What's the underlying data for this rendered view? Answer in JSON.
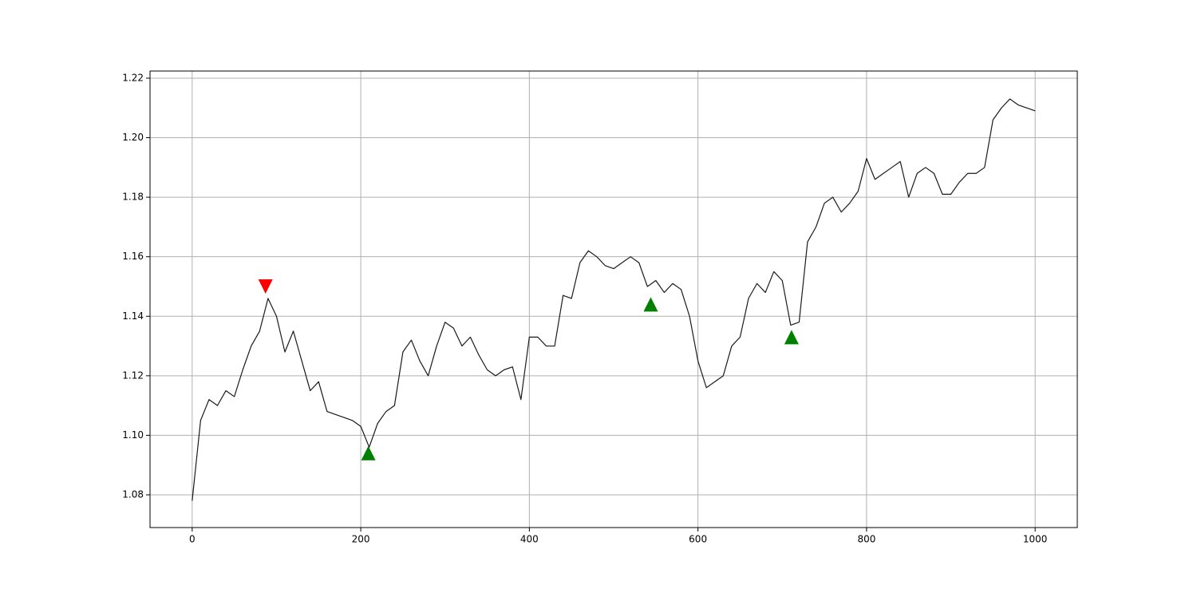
{
  "chart_data": {
    "type": "line",
    "x": [
      0,
      10,
      20,
      30,
      40,
      50,
      60,
      70,
      80,
      90,
      100,
      110,
      120,
      130,
      140,
      150,
      160,
      170,
      180,
      190,
      200,
      210,
      220,
      230,
      240,
      250,
      260,
      270,
      280,
      290,
      300,
      310,
      320,
      330,
      340,
      350,
      360,
      370,
      380,
      390,
      400,
      410,
      420,
      430,
      440,
      450,
      460,
      470,
      480,
      490,
      500,
      510,
      520,
      530,
      540,
      550,
      560,
      570,
      580,
      590,
      600,
      610,
      620,
      630,
      640,
      650,
      660,
      670,
      680,
      690,
      700,
      710,
      720,
      730,
      740,
      750,
      760,
      770,
      780,
      790,
      800,
      810,
      820,
      830,
      840,
      850,
      860,
      870,
      880,
      890,
      900,
      910,
      920,
      930,
      940,
      950,
      960,
      970,
      980,
      990,
      1000
    ],
    "series": [
      {
        "color": "#1a1a1a",
        "values": [
          1.078,
          1.105,
          1.112,
          1.11,
          1.115,
          1.113,
          1.122,
          1.13,
          1.135,
          1.146,
          1.14,
          1.128,
          1.135,
          1.125,
          1.115,
          1.118,
          1.108,
          1.107,
          1.106,
          1.105,
          1.103,
          1.096,
          1.104,
          1.108,
          1.11,
          1.128,
          1.132,
          1.125,
          1.12,
          1.13,
          1.138,
          1.136,
          1.13,
          1.133,
          1.127,
          1.122,
          1.12,
          1.122,
          1.123,
          1.112,
          1.133,
          1.133,
          1.13,
          1.13,
          1.147,
          1.146,
          1.158,
          1.162,
          1.16,
          1.157,
          1.156,
          1.158,
          1.16,
          1.158,
          1.15,
          1.152,
          1.148,
          1.151,
          1.149,
          1.14,
          1.125,
          1.116,
          1.118,
          1.12,
          1.13,
          1.133,
          1.146,
          1.151,
          1.148,
          1.155,
          1.152,
          1.137,
          1.138,
          1.165,
          1.17,
          1.178,
          1.18,
          1.175,
          1.178,
          1.182,
          1.193,
          1.186,
          1.188,
          1.19,
          1.192,
          1.18,
          1.188,
          1.19,
          1.188,
          1.181,
          1.181,
          1.185,
          1.188,
          1.188,
          1.19,
          1.206,
          1.21,
          1.213,
          1.211,
          1.21,
          1.209
        ]
      }
    ],
    "markers": [
      {
        "marker": "triangle-down",
        "color": "#ff0000",
        "x": [
          87
        ],
        "values": [
          1.15
        ]
      },
      {
        "marker": "triangle-up",
        "color": "#008000",
        "x": [
          209,
          544,
          711
        ],
        "values": [
          1.094,
          1.144,
          1.133
        ]
      }
    ],
    "xlim": [
      -50,
      1050
    ],
    "ylim": [
      1.069,
      1.2224
    ],
    "xticks": [
      0,
      200,
      400,
      600,
      800,
      1000
    ],
    "yticks": [
      1.08,
      {
        "value": 1.1,
        "label": "1.10"
      },
      1.12,
      1.14,
      1.16,
      1.18,
      {
        "value": 1.2,
        "label": "1.20"
      },
      1.22
    ],
    "grid": true
  }
}
